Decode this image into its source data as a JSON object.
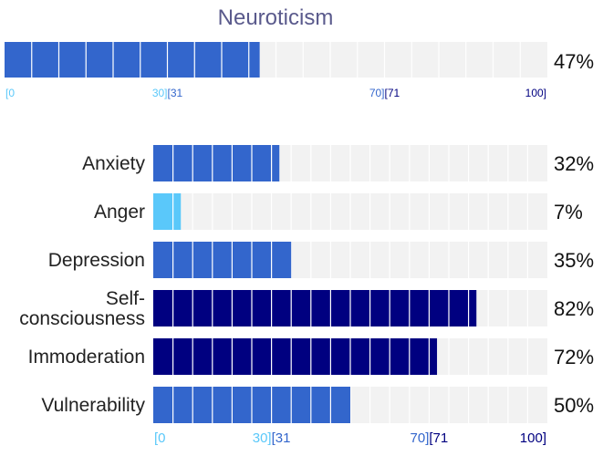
{
  "chart_data": {
    "type": "bar",
    "title": "Neuroticism",
    "overall": {
      "value": 47,
      "label": "47%"
    },
    "categories": [
      "Anxiety",
      "Anger",
      "Depression",
      "Self-consciousness",
      "Immoderation",
      "Vulnerability"
    ],
    "category_lines": [
      [
        "Anxiety"
      ],
      [
        "Anger"
      ],
      [
        "Depression"
      ],
      [
        "Self-",
        "consciousness"
      ],
      [
        "Immoderation"
      ],
      [
        "Vulnerability"
      ]
    ],
    "values": [
      32,
      7,
      35,
      82,
      72,
      50
    ],
    "value_labels": [
      "32%",
      "7%",
      "35%",
      "82%",
      "72%",
      "50%"
    ],
    "xlim": [
      0,
      100
    ],
    "ranges": [
      {
        "low": 0,
        "high": 30,
        "color": "#5ac8fa"
      },
      {
        "low": 31,
        "high": 70,
        "color": "#3366cc"
      },
      {
        "low": 71,
        "high": 100,
        "color": "#000080"
      }
    ],
    "tick_labels": [
      "[0",
      "30][31",
      "70][71",
      "100]"
    ],
    "track_color": "#f2f2f2"
  }
}
